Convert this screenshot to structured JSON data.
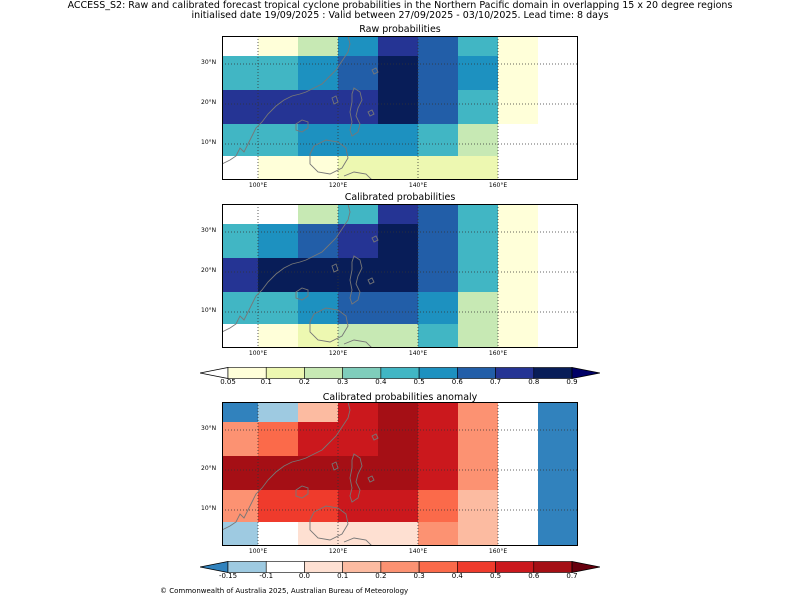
{
  "header": {
    "line1": "ACCESS_S2: Raw and calibrated forecast tropical cyclone probabilities in the Northern Pacific domain in overlapping 15 x 20 degree regions",
    "line2": "initialised date 19/09/2025 :  Valid between 27/09/2025 - 03/10/2025. Lead time: 8 days"
  },
  "axes": {
    "lon_labels": [
      "100°E",
      "120°E",
      "140°E",
      "160°E"
    ],
    "lat_labels": [
      "30°N",
      "20°N",
      "10°N"
    ]
  },
  "panels": [
    {
      "title": "Raw probabilities",
      "grid": [
        [
          0,
          1,
          3,
          6,
          8,
          7,
          5,
          1,
          0
        ],
        [
          5,
          5,
          6,
          7,
          9,
          7,
          6,
          1,
          -1
        ],
        [
          8,
          8,
          8,
          8,
          9,
          7,
          5,
          1,
          -1
        ],
        [
          5,
          5,
          6,
          6,
          6,
          5,
          3,
          0,
          -1
        ],
        [
          0,
          1,
          1,
          2,
          2,
          2,
          2,
          0,
          -1
        ]
      ]
    },
    {
      "title": "Calibrated probabilities",
      "grid": [
        [
          0,
          0,
          3,
          5,
          8,
          7,
          5,
          1,
          -1
        ],
        [
          5,
          6,
          7,
          8,
          9,
          7,
          5,
          1,
          -1
        ],
        [
          8,
          9,
          9,
          9,
          9,
          7,
          5,
          1,
          -1
        ],
        [
          5,
          5,
          6,
          7,
          7,
          6,
          3,
          1,
          -1
        ],
        [
          0,
          1,
          2,
          3,
          3,
          5,
          3,
          1,
          -1
        ]
      ]
    },
    {
      "title": "Calibrated probabilities anomaly",
      "grid": [
        [
          0,
          1,
          4,
          8,
          9,
          8,
          5,
          2,
          0
        ],
        [
          5,
          6,
          8,
          8,
          9,
          8,
          5,
          2,
          0
        ],
        [
          9,
          9,
          9,
          9,
          9,
          8,
          5,
          2,
          0
        ],
        [
          5,
          7,
          7,
          8,
          8,
          6,
          4,
          2,
          0
        ],
        [
          1,
          2,
          3,
          3,
          3,
          5,
          4,
          2,
          0
        ]
      ]
    }
  ],
  "colorbars": {
    "probability": {
      "ticks": [
        "0.05",
        "0.1",
        "0.2",
        "0.3",
        "0.4",
        "0.5",
        "0.6",
        "0.7",
        "0.8",
        "0.9"
      ],
      "colors": [
        "#ffffd9",
        "#edf8b1",
        "#c7e9b4",
        "#7fcdbb",
        "#41b6c4",
        "#1d91c0",
        "#225ea8",
        "#253494",
        "#081d58"
      ],
      "under": "#ffffff",
      "over": "#000066",
      "nodata": "#ffffff"
    },
    "anomaly": {
      "ticks": [
        "-0.15",
        "-0.1",
        "0.0",
        "0.1",
        "0.2",
        "0.3",
        "0.4",
        "0.5",
        "0.6",
        "0.7"
      ],
      "colors": [
        "#9ecae1",
        "#ffffff",
        "#fee0d2",
        "#fcbba1",
        "#fc9272",
        "#fb6a4a",
        "#ef3b2c",
        "#cb181d",
        "#a50f15"
      ],
      "under": "#3182bd",
      "over": "#67000d"
    }
  },
  "footer": {
    "copyright": "© Commonwealth of Australia 2025, Australian Bureau of Meteorology"
  }
}
